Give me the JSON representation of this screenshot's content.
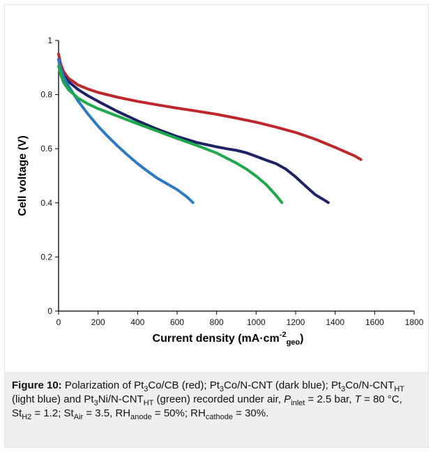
{
  "chart_data": {
    "type": "line",
    "xlabel": "Current density (mA·cm",
    "xlabel_sup": "-2",
    "xlabel_sub": "geo",
    "xlabel_close": ")",
    "ylabel": "Cell voltage (V)",
    "xlim": [
      0,
      1800
    ],
    "ylim": [
      0,
      1
    ],
    "xticks": [
      "0",
      "200",
      "400",
      "600",
      "800",
      "1000",
      "1200",
      "1400",
      "1600",
      "1800"
    ],
    "yticks": [
      "0",
      "0.2",
      "0.4",
      "0.6",
      "0.8",
      "1"
    ],
    "grid": false,
    "series": [
      {
        "color": "#c0272d",
        "x": [
          0,
          10,
          25,
          50,
          100,
          150,
          200,
          300,
          400,
          500,
          600,
          700,
          800,
          900,
          1000,
          1100,
          1200,
          1300,
          1400,
          1500,
          1530
        ],
        "y": [
          0.95,
          0.915,
          0.885,
          0.86,
          0.835,
          0.82,
          0.808,
          0.79,
          0.775,
          0.762,
          0.75,
          0.739,
          0.727,
          0.713,
          0.698,
          0.68,
          0.66,
          0.635,
          0.605,
          0.573,
          0.56
        ]
      },
      {
        "color": "#1e2366",
        "x": [
          0,
          10,
          25,
          50,
          100,
          150,
          200,
          300,
          400,
          500,
          600,
          700,
          800,
          850,
          900,
          950,
          1000,
          1050,
          1100,
          1150,
          1200,
          1250,
          1300,
          1350,
          1365
        ],
        "y": [
          0.93,
          0.895,
          0.87,
          0.848,
          0.818,
          0.795,
          0.775,
          0.737,
          0.703,
          0.672,
          0.645,
          0.623,
          0.607,
          0.6,
          0.594,
          0.585,
          0.572,
          0.558,
          0.545,
          0.525,
          0.496,
          0.462,
          0.43,
          0.408,
          0.401
        ]
      },
      {
        "color": "#2c7ac7",
        "x": [
          0,
          10,
          25,
          50,
          100,
          150,
          200,
          250,
          300,
          350,
          400,
          450,
          500,
          550,
          600,
          650,
          680
        ],
        "y": [
          0.93,
          0.895,
          0.865,
          0.832,
          0.775,
          0.727,
          0.683,
          0.645,
          0.609,
          0.576,
          0.545,
          0.517,
          0.491,
          0.47,
          0.449,
          0.422,
          0.401
        ]
      },
      {
        "color": "#1daa4a",
        "x": [
          0,
          10,
          25,
          50,
          100,
          150,
          200,
          300,
          400,
          500,
          600,
          700,
          800,
          900,
          950,
          1000,
          1050,
          1100,
          1130
        ],
        "y": [
          0.905,
          0.875,
          0.845,
          0.818,
          0.786,
          0.765,
          0.748,
          0.72,
          0.692,
          0.665,
          0.638,
          0.612,
          0.584,
          0.547,
          0.525,
          0.499,
          0.468,
          0.428,
          0.401
        ]
      }
    ]
  },
  "caption": {
    "label": "Figure 10:",
    "parts": [
      " Polarization of Pt",
      "3",
      "Co/CB (red); Pt",
      "3",
      "Co/N-CNT (dark blue); Pt",
      "3",
      "Co/N-CNT",
      "HT",
      " (light blue) and Pt",
      "3",
      "Ni/N-CNT",
      "HT",
      " (green) recorded under air, ",
      "P",
      "inlet",
      " = 2.5 bar, ",
      "T",
      " = 80 °C, St",
      "H2",
      " = 1.2; St",
      "Air",
      " = 3.5, RH",
      "anode",
      " = 50%; RH",
      "cathode",
      " = 30%."
    ]
  }
}
